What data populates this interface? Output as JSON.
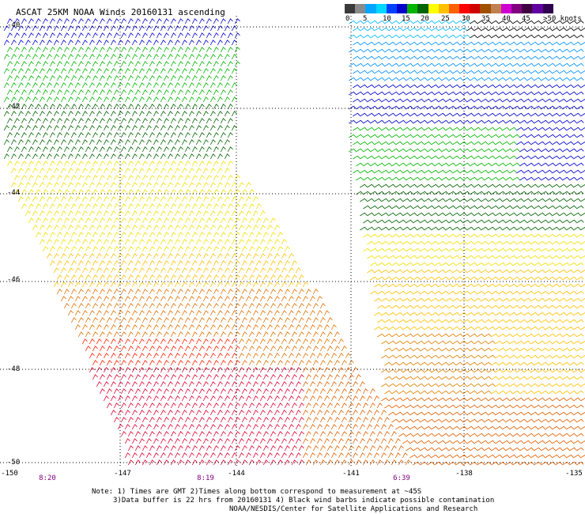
{
  "title": "ASCAT 25KM NOAA Winds 20160131 ascending",
  "colorbar": {
    "colors": [
      "#3a3a3a",
      "#8a8a8a",
      "#00a6ff",
      "#00d8ff",
      "#0040ff",
      "#0000cc",
      "#00b400",
      "#006400",
      "#ffff00",
      "#ffc000",
      "#ff6000",
      "#ff0000",
      "#d00000",
      "#a05000",
      "#c08050",
      "#d000d0",
      "#800080",
      "#400040",
      "#6000a0",
      "#300050"
    ],
    "labels": [
      "0",
      "5",
      "10",
      "15",
      "20",
      "25",
      "30",
      "35",
      "40",
      "45",
      ">50 knots"
    ]
  },
  "map": {
    "lat_labels": [
      "-40",
      "-42",
      "-44",
      "-46",
      "-48",
      "-50"
    ],
    "lon_labels": [
      "-150",
      "-147",
      "-144",
      "-141",
      "-138",
      "-135"
    ],
    "time_labels": [
      "8:20",
      "8:19",
      "6:39"
    ]
  },
  "notes": {
    "line1": "Note: 1) Times are GMT 2)Times along bottom correspond to measurement at ~45S",
    "line2": "3)Data buffer is 22 hrs from 20160131 4) Black wind barbs indicate possible contamination",
    "line3": "NOAA/NESDIS/Center for Satellite Applications and Research"
  }
}
